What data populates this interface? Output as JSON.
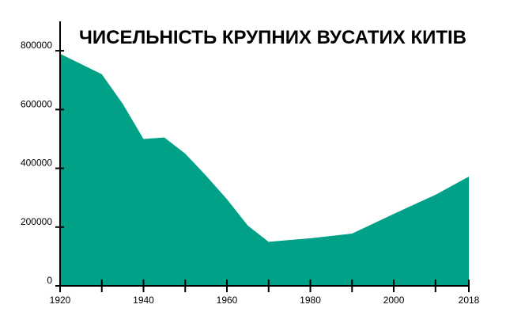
{
  "chart_data": {
    "type": "area",
    "title": "ЧИСЕЛЬНІСТЬ КРУПНИХ ВУСАТИХ КИТІВ",
    "xlabel": "",
    "ylabel": "",
    "x": [
      1920,
      1930,
      1935,
      1940,
      1945,
      1950,
      1955,
      1960,
      1965,
      1970,
      1980,
      1990,
      2000,
      2010,
      2018
    ],
    "series": [
      {
        "values": [
          790000,
          720000,
          620000,
          500000,
          505000,
          450000,
          375000,
          295000,
          205000,
          150000,
          162000,
          178000,
          245000,
          310000,
          372000
        ]
      }
    ],
    "xlim": [
      1920,
      2018
    ],
    "ylim": [
      0,
      900000
    ],
    "x_major_ticks": [
      1920,
      1930,
      1940,
      1950,
      1960,
      1970,
      1980,
      1990,
      2000,
      2010,
      2018
    ],
    "x_tick_labels": [
      "1920",
      "1940",
      "1960",
      "1980",
      "2000",
      "2018"
    ],
    "y_ticks": [
      0,
      200000,
      400000,
      600000,
      800000
    ],
    "y_tick_labels": [
      "0",
      "200000",
      "400000",
      "600000",
      "800000"
    ],
    "grid": false,
    "legend": "none",
    "colors": {
      "fill": "#00a187",
      "axis": "#000000",
      "text": "#000000"
    }
  }
}
